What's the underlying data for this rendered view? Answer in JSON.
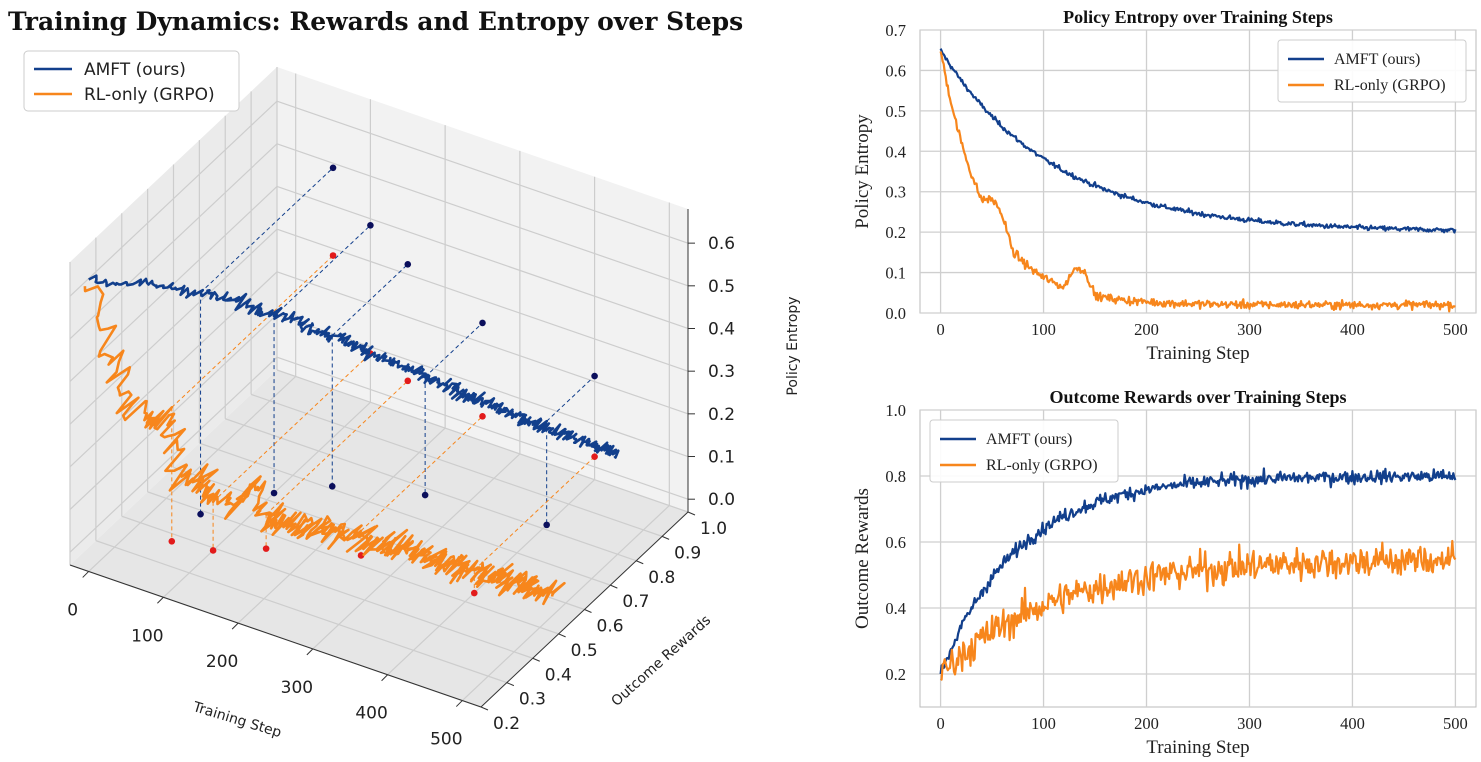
{
  "colors": {
    "amft": "#123f8c",
    "rl": "#f7861c",
    "marker_amft": "#0b0f5c",
    "marker_rl": "#e21b1b",
    "grid": "#cfcfcf"
  },
  "chart_data": [
    {
      "id": "chart3d",
      "type": "line",
      "title": "Training Dynamics: Rewards and Entropy over Steps",
      "xlabel": "Training Step",
      "ylabel": "Outcome Rewards",
      "zlabel": "Policy Entropy",
      "x_ticks": [
        "0",
        "100",
        "200",
        "300",
        "400",
        "500"
      ],
      "y_ticks": [
        "0.2",
        "0.3",
        "0.4",
        "0.5",
        "0.6",
        "0.7",
        "0.8",
        "0.9",
        "1.0"
      ],
      "z_ticks": [
        "0.0",
        "0.1",
        "0.2",
        "0.3",
        "0.4",
        "0.5",
        "0.6"
      ],
      "xlim": [
        -25,
        525
      ],
      "ylim": [
        0.2,
        1.0
      ],
      "zlim": [
        -0.03,
        0.68
      ],
      "legend_position": "top-left",
      "series": [
        {
          "name": "AMFT (ours)",
          "entropy_from": 0.65,
          "entropy_to": 0.2,
          "reward_from": 0.2,
          "reward_to": 0.8
        },
        {
          "name": "RL-only (GRPO)",
          "entropy_from": 0.65,
          "entropy_to": 0.02,
          "reward_from": 0.2,
          "reward_to": 0.55
        }
      ],
      "projection_steps": [
        50,
        100,
        150,
        250,
        400
      ]
    },
    {
      "id": "entropy",
      "type": "line",
      "title": "Policy Entropy over Training Steps",
      "xlabel": "Training Step",
      "ylabel": "Policy Entropy",
      "xlim": [
        -20,
        520
      ],
      "ylim": [
        0.0,
        0.7
      ],
      "x_ticks": [
        "0",
        "100",
        "200",
        "300",
        "400",
        "500"
      ],
      "y_ticks": [
        "0.0",
        "0.1",
        "0.2",
        "0.3",
        "0.4",
        "0.5",
        "0.6",
        "0.7"
      ],
      "legend_position": "top-right",
      "series": [
        {
          "name": "AMFT (ours)",
          "start": 0.65,
          "end": 0.2
        },
        {
          "name": "RL-only (GRPO)",
          "start": 0.65,
          "end": 0.02
        }
      ]
    },
    {
      "id": "reward",
      "type": "line",
      "title": "Outcome Rewards over Training Steps",
      "xlabel": "Training Step",
      "ylabel": "Outcome Rewards",
      "xlim": [
        -20,
        520
      ],
      "ylim": [
        0.1,
        1.0
      ],
      "x_ticks": [
        "0",
        "100",
        "200",
        "300",
        "400",
        "500"
      ],
      "y_ticks": [
        "0.2",
        "0.4",
        "0.6",
        "0.8",
        "1.0"
      ],
      "legend_position": "top-left",
      "series": [
        {
          "name": "AMFT (ours)",
          "start": 0.2,
          "end": 0.8
        },
        {
          "name": "RL-only (GRPO)",
          "start": 0.2,
          "end": 0.55
        }
      ]
    }
  ]
}
